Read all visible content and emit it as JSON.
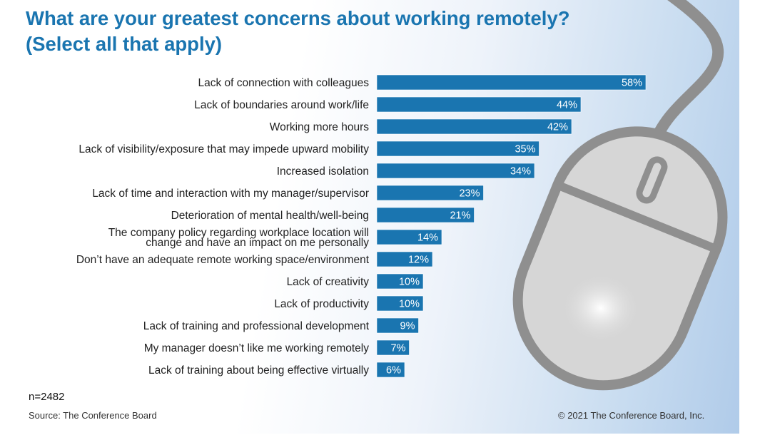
{
  "title_lines": [
    "What are your greatest concerns about working remotely?",
    "(Select all that apply)"
  ],
  "sample_size": "n=2482",
  "source": "Source: The Conference Board",
  "copyright": "© 2021 The Conference Board, Inc.",
  "colors": {
    "bar": "#1a75b0",
    "title": "#1a75b0"
  },
  "decoration": "computer-mouse-illustration",
  "chart_data": {
    "type": "bar",
    "orientation": "horizontal",
    "value_suffix": "%",
    "grid": false,
    "legend": "none",
    "xlim": [
      0,
      70
    ],
    "categories": [
      "Lack of connection with colleagues",
      "Lack of boundaries around work/life",
      "Working more hours",
      "Lack of visibility/exposure that may impede upward mobility",
      "Increased isolation",
      "Lack of time and interaction with my manager/supervisor",
      "Deterioration of mental health/well-being",
      [
        "The company policy regarding workplace location will",
        "change and have an impact on me personally"
      ],
      "Don’t have an adequate remote working space/environment",
      "Lack of creativity",
      "Lack of productivity",
      "Lack of training and professional development",
      "My manager doesn’t like me working remotely",
      "Lack of training about being effective virtually"
    ],
    "values": [
      58,
      44,
      42,
      35,
      34,
      23,
      21,
      14,
      12,
      10,
      10,
      9,
      7,
      6
    ]
  }
}
